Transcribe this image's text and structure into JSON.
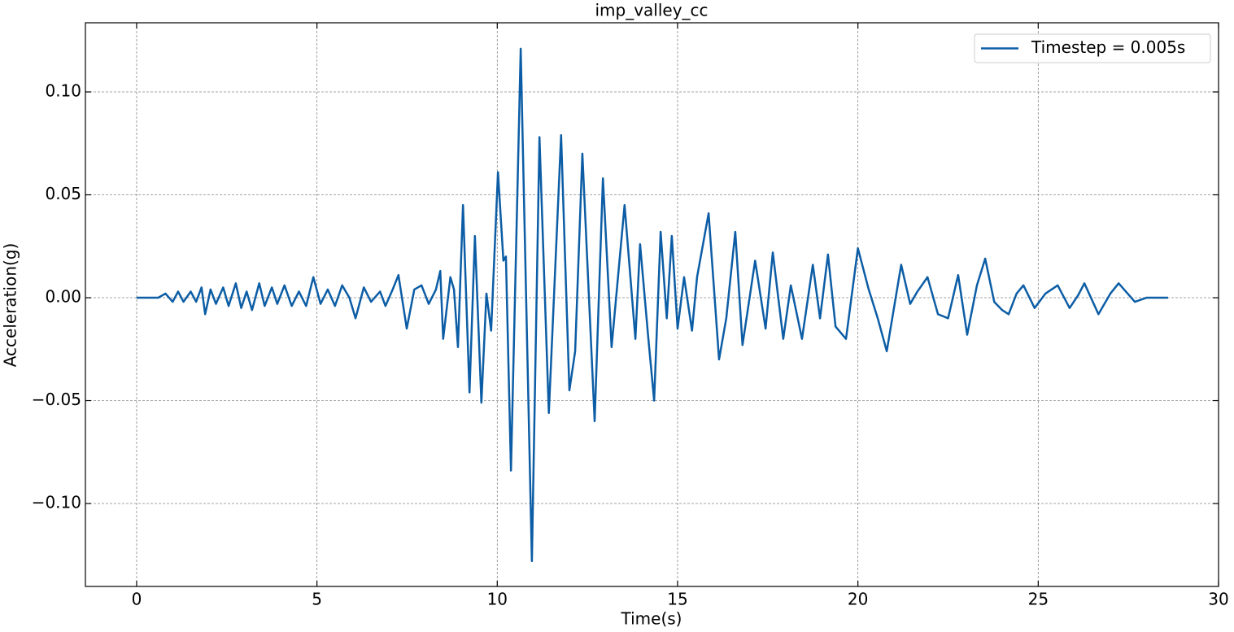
{
  "chart_data": {
    "type": "line",
    "title": "imp_valley_cc",
    "x_label": "Time(s)",
    "y_label": "Acceleration(g)",
    "xlim": [
      -1.42,
      30
    ],
    "ylim": [
      -0.1403,
      0.1336
    ],
    "xticks": [
      0,
      5,
      10,
      15,
      20,
      25,
      30
    ],
    "yticks": [
      {
        "value": -0.1,
        "label": "−0.10"
      },
      {
        "value": -0.05,
        "label": "−0.05"
      },
      {
        "value": 0,
        "label": "0.00"
      },
      {
        "value": 0.05,
        "label": "0.05"
      },
      {
        "value": 0.1,
        "label": "0.10"
      }
    ],
    "grid": true,
    "legend": "upper right",
    "x": [
      0,
      0.6,
      0.8,
      1.0,
      1.15,
      1.3,
      1.5,
      1.65,
      1.8,
      1.9,
      2.05,
      2.2,
      2.4,
      2.55,
      2.75,
      2.9,
      3.05,
      3.2,
      3.4,
      3.55,
      3.75,
      3.9,
      4.1,
      4.3,
      4.5,
      4.7,
      4.9,
      5.1,
      5.3,
      5.5,
      5.7,
      5.9,
      6.07,
      6.3,
      6.5,
      6.75,
      6.9,
      7.1,
      7.26,
      7.49,
      7.7,
      7.9,
      8.1,
      8.3,
      8.42,
      8.5,
      8.7,
      8.8,
      8.91,
      9.05,
      9.23,
      9.38,
      9.56,
      9.7,
      9.83,
      10.02,
      10.17,
      10.24,
      10.38,
      10.65,
      10.96,
      11.17,
      11.43,
      11.77,
      12.0,
      12.16,
      12.36,
      12.7,
      12.93,
      13.17,
      13.53,
      13.83,
      13.96,
      14.19,
      14.35,
      14.53,
      14.7,
      14.84,
      15.0,
      15.18,
      15.4,
      15.54,
      15.86,
      16.15,
      16.35,
      16.6,
      16.8,
      17.15,
      17.44,
      17.64,
      17.93,
      18.14,
      18.45,
      18.75,
      18.95,
      19.17,
      19.38,
      19.67,
      20.0,
      20.3,
      20.55,
      20.8,
      21.2,
      21.45,
      21.65,
      21.93,
      22.22,
      22.5,
      22.78,
      23.03,
      23.3,
      23.53,
      23.78,
      24.0,
      24.18,
      24.4,
      24.59,
      24.9,
      25.2,
      25.54,
      25.87,
      26.1,
      26.28,
      26.67,
      27.0,
      27.23,
      27.68,
      28.0,
      28.6
    ],
    "series": [
      {
        "name": "Timestep = 0.005s",
        "color": "#0c5da5",
        "values": [
          0,
          0,
          0.002,
          -0.002,
          0.003,
          -0.002,
          0.003,
          -0.002,
          0.005,
          -0.008,
          0.004,
          -0.003,
          0.005,
          -0.004,
          0.007,
          -0.005,
          0.003,
          -0.006,
          0.007,
          -0.004,
          0.005,
          -0.003,
          0.006,
          -0.004,
          0.003,
          -0.004,
          0.01,
          -0.003,
          0.004,
          -0.004,
          0.006,
          0,
          -0.01,
          0.005,
          -0.002,
          0.003,
          -0.004,
          0.004,
          0.011,
          -0.015,
          0.004,
          0.006,
          -0.003,
          0.004,
          0.013,
          -0.02,
          0.01,
          0.004,
          -0.024,
          0.045,
          -0.046,
          0.03,
          -0.051,
          0.002,
          -0.016,
          0.061,
          0.018,
          0.02,
          -0.084,
          0.121,
          -0.128,
          0.078,
          -0.056,
          0.079,
          -0.045,
          -0.026,
          0.07,
          -0.06,
          0.058,
          -0.024,
          0.045,
          -0.02,
          0.026,
          -0.02,
          -0.05,
          0.032,
          -0.01,
          0.03,
          -0.015,
          0.01,
          -0.016,
          0.01,
          0.041,
          -0.03,
          -0.01,
          0.032,
          -0.023,
          0.018,
          -0.015,
          0.022,
          -0.02,
          0.006,
          -0.02,
          0.016,
          -0.01,
          0.021,
          -0.014,
          -0.02,
          0.024,
          0.004,
          -0.01,
          -0.026,
          0.016,
          -0.003,
          0.003,
          0.01,
          -0.008,
          -0.01,
          0.011,
          -0.018,
          0.006,
          0.019,
          -0.002,
          -0.006,
          -0.008,
          0.002,
          0.006,
          -0.005,
          0.002,
          0.006,
          -0.005,
          0.001,
          0.007,
          -0.008,
          0.002,
          0.007,
          -0.002,
          0,
          0
        ]
      }
    ]
  }
}
